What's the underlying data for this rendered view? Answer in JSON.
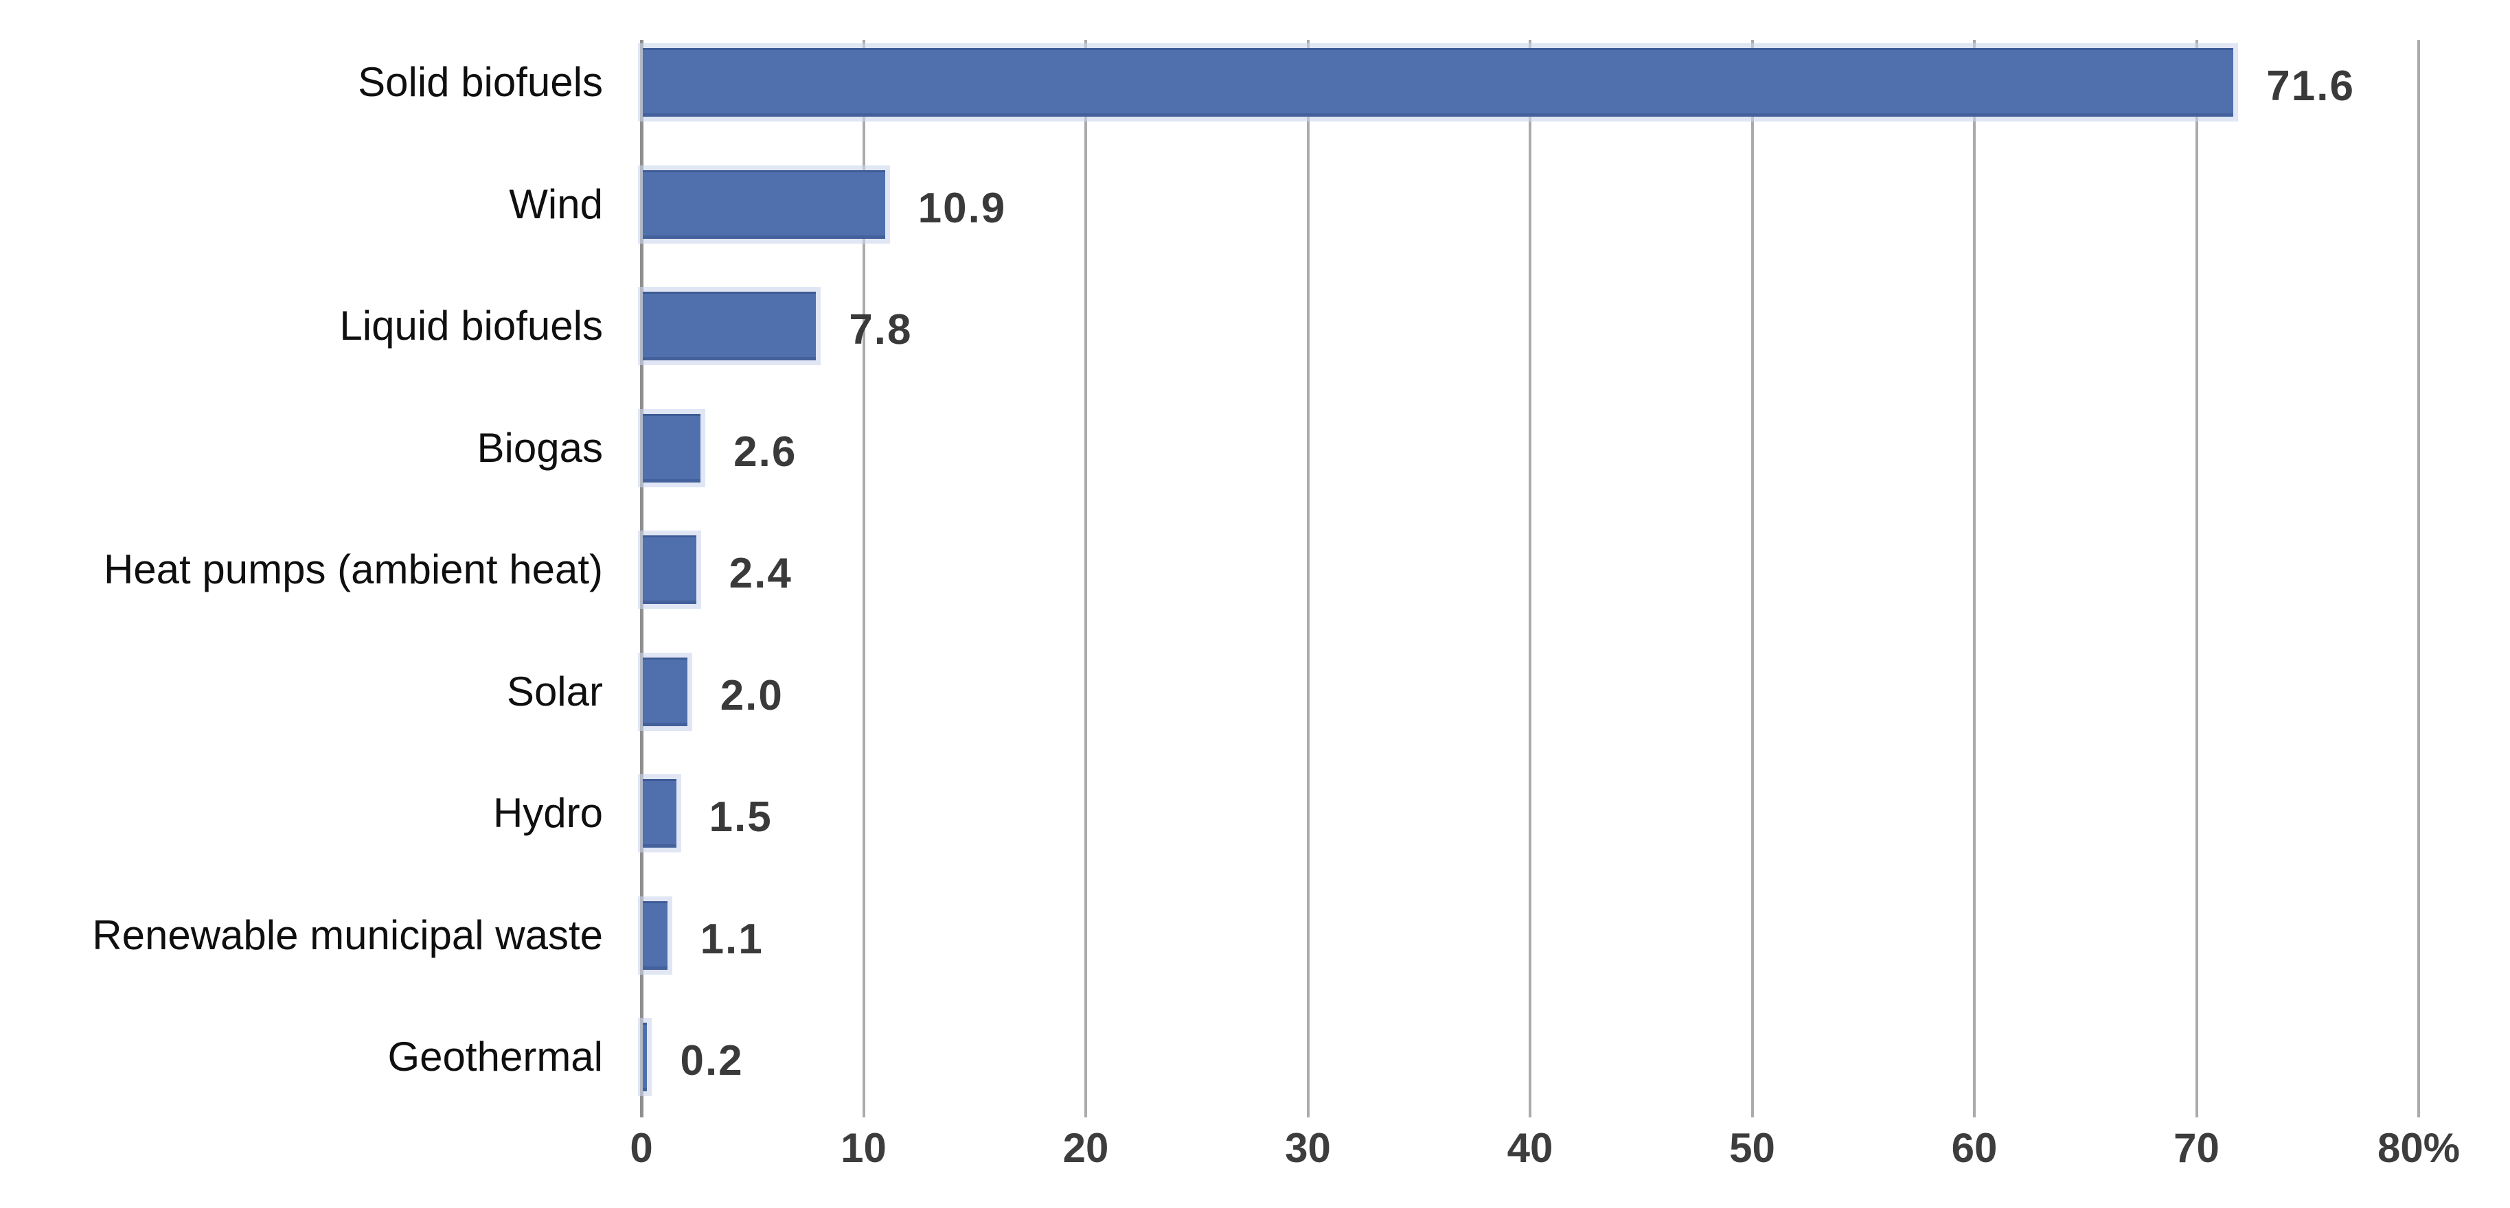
{
  "chart_data": {
    "type": "bar",
    "orientation": "horizontal",
    "title": "",
    "xlabel": "",
    "ylabel": "",
    "unit": "%",
    "categories": [
      "Solid biofuels",
      "Wind",
      "Liquid biofuels",
      "Biogas",
      "Heat pumps (ambient heat)",
      "Solar",
      "Hydro",
      "Renewable municipal waste",
      "Geothermal"
    ],
    "values": [
      71.6,
      10.9,
      7.8,
      2.6,
      2.4,
      2.0,
      1.5,
      1.1,
      0.2
    ],
    "value_labels": [
      "71.6",
      "10.9",
      "7.8",
      "2.6",
      "2.4",
      "2.0",
      "1.5",
      "1.1",
      "0.2"
    ],
    "xlim": [
      0,
      80
    ],
    "xticks": {
      "values": [
        0,
        10,
        20,
        30,
        40,
        50,
        60,
        70,
        80
      ],
      "labels": [
        "0",
        "10",
        "20",
        "30",
        "40",
        "50",
        "60",
        "70",
        "80%"
      ]
    },
    "grid": "vertical",
    "legend": "none",
    "colors": {
      "bar_fill": "#4f70ad",
      "bar_edge": "#3e5b96",
      "bar_halo": "#cbd4ec",
      "gridline": "#ababab",
      "axis_line": "#8f8f8f",
      "category_label": "#0f0f0f",
      "value_label": "#3a3a3a",
      "tick_label": "#3d3d3d",
      "background": "#ffffff"
    }
  }
}
